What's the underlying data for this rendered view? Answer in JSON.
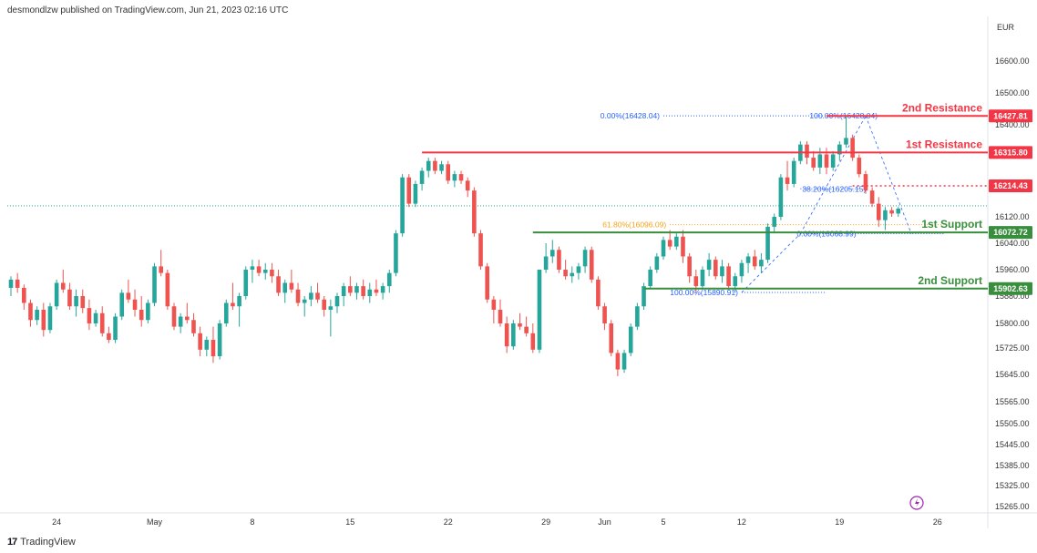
{
  "header": {
    "publisher": "desmondlzw published on TradingView.com, Jun 21, 2023 02:16 UTC"
  },
  "footer": {
    "brand": "TradingView",
    "logo_glyph": "17"
  },
  "colors": {
    "bull": "#26a69a",
    "bear": "#ef5350",
    "resistance": "#f23645",
    "support": "#388e3c",
    "fib_blue": "#2962ff",
    "fib_orange": "#f7a21b",
    "dotted_current": "#089981",
    "lightning": "#9c27b0"
  },
  "chart_data": {
    "type": "candlestick",
    "title": "",
    "currency": "EUR",
    "ylim": [
      15230,
      16700
    ],
    "y_ticks": [
      16600.0,
      16500.0,
      16400.0,
      16120.0,
      16040.0,
      15960.0,
      15880.0,
      15800.0,
      15725.0,
      15645.0,
      15565.0,
      15505.0,
      15445.0,
      15385.0,
      15325.0,
      15265.0
    ],
    "y_tick_labels": [
      "16600.00",
      "16500.00",
      "16400.00",
      "16120.00",
      "16040.00",
      "15960.00",
      "15880.00",
      "15800.00",
      "15725.00",
      "15645.00",
      "15565.00",
      "15505.00",
      "15445.00",
      "15385.00",
      "15325.00",
      "15265.00"
    ],
    "x_ticks": [
      {
        "label": "24",
        "index": 7
      },
      {
        "label": "May",
        "index": 22
      },
      {
        "label": "8",
        "index": 37
      },
      {
        "label": "15",
        "index": 52
      },
      {
        "label": "22",
        "index": 67
      },
      {
        "label": "29",
        "index": 82
      },
      {
        "label": "Jun",
        "index": 91
      },
      {
        "label": "5",
        "index": 100
      },
      {
        "label": "12",
        "index": 112
      },
      {
        "label": "19",
        "index": 127
      },
      {
        "label": "26",
        "index": 142
      }
    ],
    "candles": [
      {
        "o": 15905,
        "h": 15940,
        "l": 15880,
        "c": 15930
      },
      {
        "o": 15930,
        "h": 15950,
        "l": 15890,
        "c": 15905
      },
      {
        "o": 15905,
        "h": 15915,
        "l": 15840,
        "c": 15860
      },
      {
        "o": 15860,
        "h": 15870,
        "l": 15790,
        "c": 15810
      },
      {
        "o": 15810,
        "h": 15850,
        "l": 15795,
        "c": 15840
      },
      {
        "o": 15840,
        "h": 15860,
        "l": 15760,
        "c": 15780
      },
      {
        "o": 15780,
        "h": 15860,
        "l": 15770,
        "c": 15850
      },
      {
        "o": 15850,
        "h": 15930,
        "l": 15840,
        "c": 15920
      },
      {
        "o": 15920,
        "h": 15960,
        "l": 15890,
        "c": 15900
      },
      {
        "o": 15900,
        "h": 15920,
        "l": 15840,
        "c": 15850
      },
      {
        "o": 15850,
        "h": 15900,
        "l": 15820,
        "c": 15880
      },
      {
        "o": 15880,
        "h": 15900,
        "l": 15830,
        "c": 15845
      },
      {
        "o": 15845,
        "h": 15870,
        "l": 15780,
        "c": 15800
      },
      {
        "o": 15800,
        "h": 15840,
        "l": 15790,
        "c": 15830
      },
      {
        "o": 15830,
        "h": 15850,
        "l": 15760,
        "c": 15770
      },
      {
        "o": 15770,
        "h": 15790,
        "l": 15740,
        "c": 15750
      },
      {
        "o": 15750,
        "h": 15830,
        "l": 15740,
        "c": 15820
      },
      {
        "o": 15820,
        "h": 15900,
        "l": 15810,
        "c": 15890
      },
      {
        "o": 15890,
        "h": 15930,
        "l": 15860,
        "c": 15870
      },
      {
        "o": 15870,
        "h": 15900,
        "l": 15820,
        "c": 15840
      },
      {
        "o": 15840,
        "h": 15880,
        "l": 15790,
        "c": 15810
      },
      {
        "o": 15810,
        "h": 15870,
        "l": 15800,
        "c": 15860
      },
      {
        "o": 15860,
        "h": 15980,
        "l": 15850,
        "c": 15970
      },
      {
        "o": 15970,
        "h": 16020,
        "l": 15940,
        "c": 15950
      },
      {
        "o": 15950,
        "h": 15960,
        "l": 15840,
        "c": 15850
      },
      {
        "o": 15850,
        "h": 15860,
        "l": 15780,
        "c": 15790
      },
      {
        "o": 15790,
        "h": 15830,
        "l": 15770,
        "c": 15820
      },
      {
        "o": 15820,
        "h": 15860,
        "l": 15800,
        "c": 15810
      },
      {
        "o": 15810,
        "h": 15830,
        "l": 15760,
        "c": 15770
      },
      {
        "o": 15770,
        "h": 15790,
        "l": 15700,
        "c": 15720
      },
      {
        "o": 15720,
        "h": 15760,
        "l": 15700,
        "c": 15750
      },
      {
        "o": 15750,
        "h": 15790,
        "l": 15680,
        "c": 15700
      },
      {
        "o": 15700,
        "h": 15810,
        "l": 15690,
        "c": 15800
      },
      {
        "o": 15800,
        "h": 15870,
        "l": 15790,
        "c": 15860
      },
      {
        "o": 15860,
        "h": 15920,
        "l": 15840,
        "c": 15850
      },
      {
        "o": 15850,
        "h": 15890,
        "l": 15790,
        "c": 15880
      },
      {
        "o": 15880,
        "h": 15970,
        "l": 15870,
        "c": 15960
      },
      {
        "o": 15960,
        "h": 15990,
        "l": 15920,
        "c": 15970
      },
      {
        "o": 15970,
        "h": 15990,
        "l": 15940,
        "c": 15950
      },
      {
        "o": 15950,
        "h": 15980,
        "l": 15930,
        "c": 15960
      },
      {
        "o": 15960,
        "h": 15980,
        "l": 15920,
        "c": 15940
      },
      {
        "o": 15940,
        "h": 15960,
        "l": 15880,
        "c": 15890
      },
      {
        "o": 15890,
        "h": 15930,
        "l": 15860,
        "c": 15920
      },
      {
        "o": 15920,
        "h": 15960,
        "l": 15890,
        "c": 15900
      },
      {
        "o": 15900,
        "h": 15920,
        "l": 15850,
        "c": 15860
      },
      {
        "o": 15860,
        "h": 15880,
        "l": 15820,
        "c": 15870
      },
      {
        "o": 15870,
        "h": 15910,
        "l": 15850,
        "c": 15890
      },
      {
        "o": 15890,
        "h": 15920,
        "l": 15860,
        "c": 15870
      },
      {
        "o": 15870,
        "h": 15880,
        "l": 15820,
        "c": 15840
      },
      {
        "o": 15840,
        "h": 15870,
        "l": 15760,
        "c": 15850
      },
      {
        "o": 15850,
        "h": 15890,
        "l": 15830,
        "c": 15880
      },
      {
        "o": 15880,
        "h": 15920,
        "l": 15850,
        "c": 15910
      },
      {
        "o": 15910,
        "h": 15940,
        "l": 15880,
        "c": 15890
      },
      {
        "o": 15890,
        "h": 15920,
        "l": 15870,
        "c": 15910
      },
      {
        "o": 15910,
        "h": 15930,
        "l": 15870,
        "c": 15880
      },
      {
        "o": 15880,
        "h": 15920,
        "l": 15860,
        "c": 15900
      },
      {
        "o": 15900,
        "h": 15930,
        "l": 15880,
        "c": 15890
      },
      {
        "o": 15890,
        "h": 15920,
        "l": 15870,
        "c": 15910
      },
      {
        "o": 15910,
        "h": 15960,
        "l": 15890,
        "c": 15950
      },
      {
        "o": 15950,
        "h": 16080,
        "l": 15940,
        "c": 16070
      },
      {
        "o": 16070,
        "h": 16250,
        "l": 16060,
        "c": 16240
      },
      {
        "o": 16240,
        "h": 16250,
        "l": 16150,
        "c": 16160
      },
      {
        "o": 16160,
        "h": 16230,
        "l": 16150,
        "c": 16220
      },
      {
        "o": 16220,
        "h": 16270,
        "l": 16200,
        "c": 16260
      },
      {
        "o": 16260,
        "h": 16300,
        "l": 16240,
        "c": 16290
      },
      {
        "o": 16290,
        "h": 16300,
        "l": 16250,
        "c": 16260
      },
      {
        "o": 16260,
        "h": 16290,
        "l": 16250,
        "c": 16280
      },
      {
        "o": 16280,
        "h": 16290,
        "l": 16220,
        "c": 16230
      },
      {
        "o": 16230,
        "h": 16260,
        "l": 16210,
        "c": 16250
      },
      {
        "o": 16250,
        "h": 16260,
        "l": 16220,
        "c": 16230
      },
      {
        "o": 16230,
        "h": 16240,
        "l": 16180,
        "c": 16200
      },
      {
        "o": 16200,
        "h": 16210,
        "l": 16060,
        "c": 16070
      },
      {
        "o": 16070,
        "h": 16080,
        "l": 15960,
        "c": 15970
      },
      {
        "o": 15970,
        "h": 15980,
        "l": 15860,
        "c": 15870
      },
      {
        "o": 15870,
        "h": 15880,
        "l": 15800,
        "c": 15840
      },
      {
        "o": 15840,
        "h": 15870,
        "l": 15790,
        "c": 15800
      },
      {
        "o": 15800,
        "h": 15820,
        "l": 15710,
        "c": 15730
      },
      {
        "o": 15730,
        "h": 15810,
        "l": 15720,
        "c": 15800
      },
      {
        "o": 15800,
        "h": 15830,
        "l": 15780,
        "c": 15790
      },
      {
        "o": 15790,
        "h": 15820,
        "l": 15760,
        "c": 15770
      },
      {
        "o": 15770,
        "h": 15800,
        "l": 15710,
        "c": 15720
      },
      {
        "o": 15720,
        "h": 15960,
        "l": 15710,
        "c": 15960
      },
      {
        "o": 15960,
        "h": 16040,
        "l": 15950,
        "c": 16000
      },
      {
        "o": 16000,
        "h": 16050,
        "l": 15980,
        "c": 16020
      },
      {
        "o": 16020,
        "h": 16030,
        "l": 15950,
        "c": 15960
      },
      {
        "o": 15960,
        "h": 15990,
        "l": 15930,
        "c": 15940
      },
      {
        "o": 15940,
        "h": 15970,
        "l": 15920,
        "c": 15950
      },
      {
        "o": 15950,
        "h": 15980,
        "l": 15930,
        "c": 15970
      },
      {
        "o": 15970,
        "h": 16030,
        "l": 15950,
        "c": 16020
      },
      {
        "o": 16020,
        "h": 16030,
        "l": 15920,
        "c": 15930
      },
      {
        "o": 15930,
        "h": 15940,
        "l": 15840,
        "c": 15850
      },
      {
        "o": 15850,
        "h": 15860,
        "l": 15780,
        "c": 15800
      },
      {
        "o": 15800,
        "h": 15810,
        "l": 15700,
        "c": 15710
      },
      {
        "o": 15710,
        "h": 15720,
        "l": 15640,
        "c": 15660
      },
      {
        "o": 15660,
        "h": 15720,
        "l": 15650,
        "c": 15710
      },
      {
        "o": 15710,
        "h": 15800,
        "l": 15700,
        "c": 15790
      },
      {
        "o": 15790,
        "h": 15860,
        "l": 15780,
        "c": 15850
      },
      {
        "o": 15850,
        "h": 15920,
        "l": 15840,
        "c": 15910
      },
      {
        "o": 15910,
        "h": 15970,
        "l": 15900,
        "c": 15960
      },
      {
        "o": 15960,
        "h": 16010,
        "l": 15950,
        "c": 16000
      },
      {
        "o": 16000,
        "h": 16060,
        "l": 15990,
        "c": 16050
      },
      {
        "o": 16050,
        "h": 16080,
        "l": 16020,
        "c": 16030
      },
      {
        "o": 16030,
        "h": 16070,
        "l": 16020,
        "c": 16060
      },
      {
        "o": 16060,
        "h": 16080,
        "l": 15980,
        "c": 16000
      },
      {
        "o": 16000,
        "h": 16010,
        "l": 15920,
        "c": 15940
      },
      {
        "o": 15940,
        "h": 15960,
        "l": 15890,
        "c": 15910
      },
      {
        "o": 15910,
        "h": 15970,
        "l": 15900,
        "c": 15960
      },
      {
        "o": 15960,
        "h": 16010,
        "l": 15940,
        "c": 15990
      },
      {
        "o": 15990,
        "h": 16000,
        "l": 15930,
        "c": 15940
      },
      {
        "o": 15940,
        "h": 15990,
        "l": 15920,
        "c": 15970
      },
      {
        "o": 15970,
        "h": 15980,
        "l": 15900,
        "c": 15910
      },
      {
        "o": 15910,
        "h": 15950,
        "l": 15890,
        "c": 15940
      },
      {
        "o": 15940,
        "h": 15990,
        "l": 15920,
        "c": 15980
      },
      {
        "o": 15980,
        "h": 16010,
        "l": 15950,
        "c": 16000
      },
      {
        "o": 16000,
        "h": 16020,
        "l": 15960,
        "c": 15970
      },
      {
        "o": 15970,
        "h": 16010,
        "l": 15950,
        "c": 15990
      },
      {
        "o": 15990,
        "h": 16100,
        "l": 15980,
        "c": 16090
      },
      {
        "o": 16090,
        "h": 16130,
        "l": 16070,
        "c": 16120
      },
      {
        "o": 16120,
        "h": 16250,
        "l": 16110,
        "c": 16240
      },
      {
        "o": 16240,
        "h": 16290,
        "l": 16200,
        "c": 16220
      },
      {
        "o": 16220,
        "h": 16300,
        "l": 16210,
        "c": 16290
      },
      {
        "o": 16290,
        "h": 16350,
        "l": 16280,
        "c": 16340
      },
      {
        "o": 16340,
        "h": 16350,
        "l": 16280,
        "c": 16300
      },
      {
        "o": 16300,
        "h": 16320,
        "l": 16260,
        "c": 16270
      },
      {
        "o": 16270,
        "h": 16330,
        "l": 16250,
        "c": 16310
      },
      {
        "o": 16310,
        "h": 16330,
        "l": 16250,
        "c": 16270
      },
      {
        "o": 16270,
        "h": 16320,
        "l": 16260,
        "c": 16310
      },
      {
        "o": 16310,
        "h": 16350,
        "l": 16290,
        "c": 16340
      },
      {
        "o": 16340,
        "h": 16430,
        "l": 16330,
        "c": 16360
      },
      {
        "o": 16360,
        "h": 16370,
        "l": 16290,
        "c": 16300
      },
      {
        "o": 16300,
        "h": 16310,
        "l": 16240,
        "c": 16250
      },
      {
        "o": 16250,
        "h": 16260,
        "l": 16190,
        "c": 16200
      },
      {
        "o": 16200,
        "h": 16210,
        "l": 16150,
        "c": 16160
      },
      {
        "o": 16160,
        "h": 16180,
        "l": 16090,
        "c": 16110
      },
      {
        "o": 16110,
        "h": 16150,
        "l": 16080,
        "c": 16140
      },
      {
        "o": 16140,
        "h": 16150,
        "l": 16120,
        "c": 16130
      },
      {
        "o": 16130,
        "h": 16150,
        "l": 16120,
        "c": 16145
      }
    ],
    "x_count": 145,
    "levels": [
      {
        "name": "2nd Resistance",
        "value": 16427.81,
        "label": "16427.81",
        "kind": "resistance",
        "start_index": 125
      },
      {
        "name": "1st Resistance",
        "value": 16315.8,
        "label": "16315.80",
        "kind": "resistance",
        "start_index": 63
      },
      {
        "name": "1st Support",
        "value": 16072.72,
        "label": "16072.72",
        "kind": "support",
        "start_index": 80
      },
      {
        "name": "2nd Support",
        "value": 15902.63,
        "label": "15902.63",
        "kind": "support",
        "start_index": 97
      }
    ],
    "current_price": {
      "value": 16214.43,
      "label": "16214.43"
    },
    "fibonacci": [
      {
        "text": "0.00%(16428.04)",
        "value": 16428.04,
        "color": "blue"
      },
      {
        "text": "100.00%(16428.04)",
        "value": 16428.04,
        "color": "blue"
      },
      {
        "text": "38.20%(16205.15)",
        "value": 16205.15,
        "color": "blue"
      },
      {
        "text": "61.80%(16096.09)",
        "value": 16096.09,
        "color": "orange"
      },
      {
        "text": "0.00%(16068.99)",
        "value": 16068.99,
        "color": "blue"
      },
      {
        "text": "100.00%(15890.91)",
        "value": 15890.91,
        "color": "blue"
      }
    ]
  }
}
